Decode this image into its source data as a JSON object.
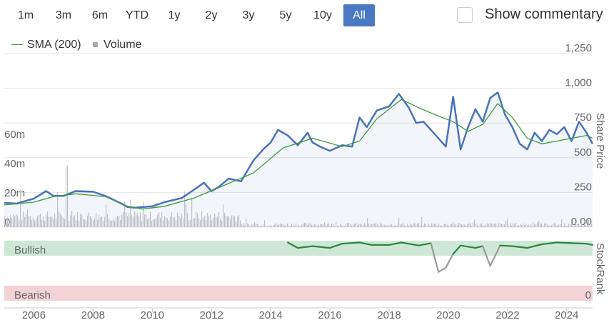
{
  "range_selector": {
    "buttons": [
      "1m",
      "3m",
      "6m",
      "YTD",
      "1y",
      "2y",
      "3y",
      "5y",
      "10y",
      "All"
    ],
    "active": "All"
  },
  "commentary": {
    "label": "Show commentary",
    "checked": false
  },
  "legend": {
    "sma_label": "SMA (200)",
    "volume_label": "Volume"
  },
  "colors": {
    "price": "#4a72b8",
    "sma": "#3d9a3d",
    "volume": "#c8c8c8",
    "bullish_bg": "#cfe8d5",
    "bearish_bg": "#f3d3d5",
    "bullish_text": "#2e8540",
    "bearish_text": "#c9343e",
    "rank_bull": "#2e8540",
    "rank_neutral": "#9a9a9a"
  },
  "chart_data": {
    "type": "line",
    "y_axis_title": "Share Price",
    "y_ticks": [
      "0.00",
      "250",
      "500",
      "750",
      "1,000",
      "1,250"
    ],
    "ylim": [
      0,
      1250
    ],
    "volume_ticks": [
      "0",
      "20m",
      "40m",
      "60m"
    ],
    "volume_lim": [
      0,
      60
    ],
    "x_ticks": [
      "2006",
      "2008",
      "2010",
      "2012",
      "2014",
      "2016",
      "2018",
      "2020",
      "2022",
      "2024"
    ],
    "xlim": [
      "2005-01-01",
      "2024-11-15"
    ],
    "series": [
      {
        "name": "",
        "x": [
          "2005-01-01",
          "2005-06-01",
          "2006-01-01",
          "2006-06-01",
          "2006-09-01",
          "2007-01-01",
          "2007-06-01",
          "2008-01-01",
          "2008-06-01",
          "2009-01-01",
          "2009-03-01",
          "2009-06-01",
          "2010-01-01",
          "2010-06-01",
          "2011-01-01",
          "2011-06-01",
          "2011-10-01",
          "2012-01-01",
          "2012-04-01",
          "2012-08-01",
          "2013-01-01",
          "2013-06-01",
          "2013-10-01",
          "2014-01-01",
          "2014-04-01",
          "2014-08-01",
          "2014-12-01",
          "2015-04-01",
          "2015-06-01",
          "2015-09-01",
          "2016-01-01",
          "2016-06-01",
          "2016-10-01",
          "2017-01-01",
          "2017-04-01",
          "2017-08-01",
          "2018-01-01",
          "2018-05-01",
          "2018-09-01",
          "2018-12-01",
          "2019-03-01",
          "2019-06-01",
          "2019-09-01",
          "2019-12-01",
          "2020-03-01",
          "2020-06-01",
          "2020-09-01",
          "2020-12-01",
          "2021-03-01",
          "2021-06-01",
          "2021-09-01",
          "2021-12-01",
          "2022-03-01",
          "2022-06-01",
          "2022-09-01",
          "2022-12-01",
          "2023-03-01",
          "2023-06-01",
          "2023-09-01",
          "2023-12-01",
          "2024-03-01",
          "2024-06-01",
          "2024-09-01",
          "2024-11-15"
        ],
        "values": [
          175,
          170,
          205,
          260,
          225,
          225,
          260,
          255,
          225,
          165,
          145,
          140,
          150,
          180,
          210,
          270,
          320,
          260,
          290,
          350,
          330,
          480,
          560,
          610,
          700,
          660,
          590,
          680,
          610,
          580,
          550,
          590,
          580,
          790,
          720,
          840,
          870,
          960,
          860,
          750,
          760,
          700,
          640,
          580,
          940,
          560,
          720,
          850,
          760,
          930,
          970,
          810,
          720,
          600,
          560,
          680,
          620,
          700,
          670,
          720,
          620,
          760,
          680,
          600
        ]
      },
      {
        "name": "SMA (200)",
        "x": [
          "2005-01-01",
          "2006-01-01",
          "2006-09-01",
          "2007-06-01",
          "2008-06-01",
          "2009-03-01",
          "2009-09-01",
          "2010-06-01",
          "2011-06-01",
          "2012-06-01",
          "2013-06-01",
          "2014-06-01",
          "2015-06-01",
          "2016-06-01",
          "2017-01-01",
          "2017-08-01",
          "2018-06-01",
          "2019-01-01",
          "2019-09-01",
          "2020-03-01",
          "2020-09-01",
          "2021-03-01",
          "2021-09-01",
          "2022-03-01",
          "2022-09-01",
          "2023-03-01",
          "2023-09-01",
          "2024-03-01",
          "2024-09-01",
          "2024-11-15"
        ],
        "values": [
          160,
          180,
          220,
          240,
          220,
          150,
          130,
          150,
          210,
          300,
          390,
          570,
          640,
          580,
          620,
          780,
          920,
          860,
          800,
          760,
          690,
          740,
          890,
          790,
          640,
          600,
          620,
          640,
          660,
          640
        ]
      }
    ],
    "stockrank": {
      "labels": {
        "top": "Bullish",
        "bottom": "Bearish",
        "axis_title": "StockRank",
        "bottom_value": "0"
      },
      "x": [
        "2014-08-01",
        "2014-12-01",
        "2015-06-01",
        "2016-01-01",
        "2016-06-01",
        "2017-01-01",
        "2017-06-01",
        "2018-01-01",
        "2018-06-01",
        "2019-01-01",
        "2019-06-01",
        "2019-09-01",
        "2019-12-01",
        "2020-03-01",
        "2020-06-01",
        "2020-12-01",
        "2021-03-01",
        "2021-06-01",
        "2021-10-01",
        "2022-03-01",
        "2022-09-01",
        "2023-03-01",
        "2023-09-01",
        "2024-03-01",
        "2024-09-01",
        "2024-11-15"
      ],
      "values": [
        97,
        88,
        91,
        88,
        95,
        97,
        93,
        93,
        97,
        92,
        96,
        48,
        55,
        78,
        92,
        88,
        91,
        58,
        92,
        91,
        88,
        94,
        97,
        96,
        95,
        93
      ]
    }
  }
}
